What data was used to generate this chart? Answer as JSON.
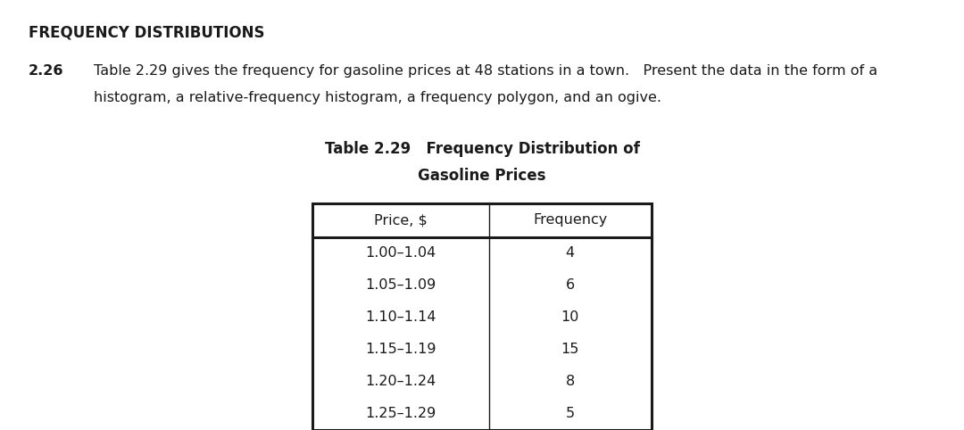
{
  "header": "FREQUENCY DISTRIBUTIONS",
  "problem_number": "2.26",
  "problem_text_line1": "Table 2.29 gives the frequency for gasoline prices at 48 stations in a town.   Present the data in the form of a",
  "problem_text_line2": "histogram, a relative-frequency histogram, a frequency polygon, and an ogive.",
  "table_title_line1": "Table 2.29   Frequency Distribution of",
  "table_title_line2": "Gasoline Prices",
  "col_headers": [
    "Price, $",
    "Frequency"
  ],
  "rows": [
    [
      "1.00–1.04",
      "4"
    ],
    [
      "1.05–1.09",
      "6"
    ],
    [
      "1.10–1.14",
      "10"
    ],
    [
      "1.15–1.19",
      "15"
    ],
    [
      "1.20–1.24",
      "8"
    ],
    [
      "1.25–1.29",
      "5"
    ]
  ],
  "bg_color": "#ffffff",
  "text_color": "#1a1a1a",
  "table_border_color": "#1a1a1a",
  "header_fontsize": 12,
  "body_fontsize": 11.5,
  "problem_fontsize": 11.5,
  "table_title_fontsize": 12
}
